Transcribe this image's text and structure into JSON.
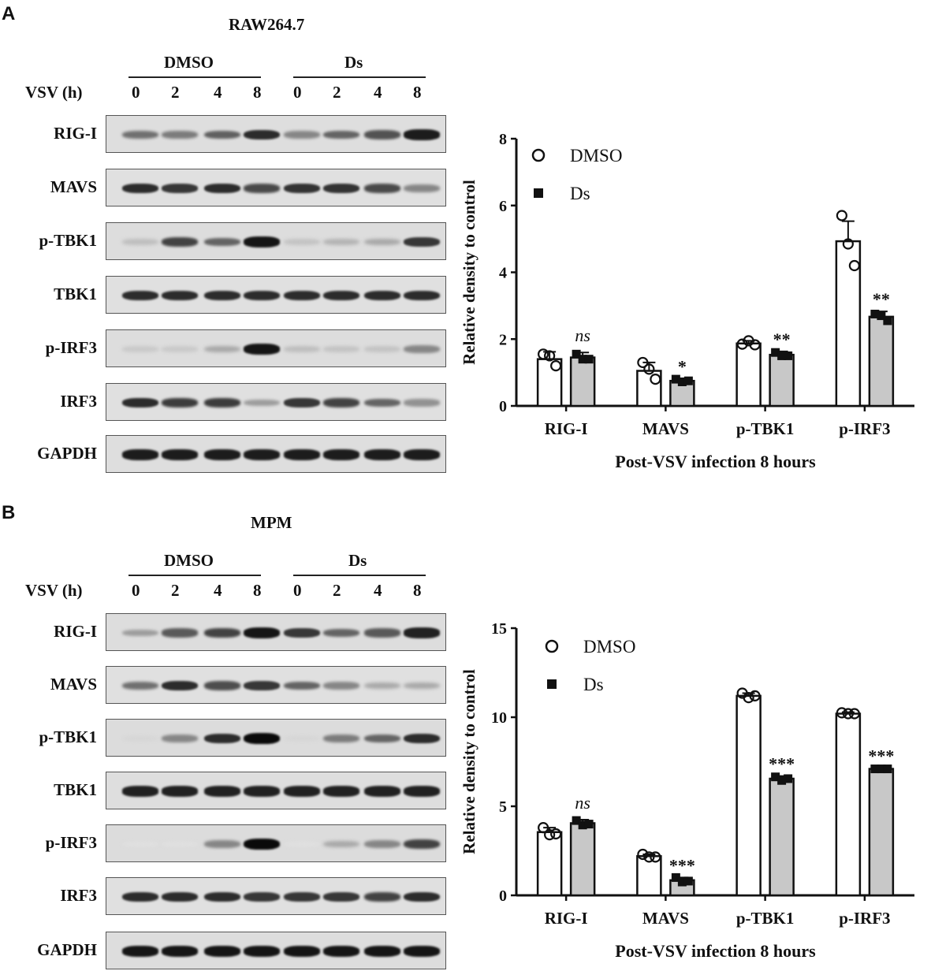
{
  "panels": [
    {
      "label": "A",
      "cell_line": "RAW264.7",
      "groups": [
        "DMSO",
        "Ds"
      ],
      "time_axis_label": "VSV (h)",
      "timepoints": [
        "0",
        "2",
        "4",
        "8",
        "0",
        "2",
        "4",
        "8"
      ],
      "blots": [
        {
          "name": "RIG-I",
          "intensity": [
            0.55,
            0.5,
            0.62,
            0.85,
            0.45,
            0.6,
            0.68,
            0.92
          ]
        },
        {
          "name": "MAVS",
          "intensity": [
            0.85,
            0.8,
            0.85,
            0.72,
            0.82,
            0.82,
            0.72,
            0.45
          ]
        },
        {
          "name": "p-TBK1",
          "intensity": [
            0.2,
            0.75,
            0.6,
            0.95,
            0.18,
            0.25,
            0.3,
            0.8
          ]
        },
        {
          "name": "TBK1",
          "intensity": [
            0.85,
            0.85,
            0.85,
            0.85,
            0.85,
            0.85,
            0.85,
            0.85
          ]
        },
        {
          "name": "p-IRF3",
          "intensity": [
            0.15,
            0.15,
            0.3,
            0.95,
            0.2,
            0.18,
            0.18,
            0.45
          ]
        },
        {
          "name": "IRF3",
          "intensity": [
            0.85,
            0.78,
            0.78,
            0.35,
            0.8,
            0.75,
            0.6,
            0.4
          ]
        },
        {
          "name": "GAPDH",
          "intensity": [
            0.92,
            0.92,
            0.92,
            0.92,
            0.92,
            0.92,
            0.92,
            0.92
          ]
        }
      ]
    },
    {
      "label": "B",
      "cell_line": "MPM",
      "groups": [
        "DMSO",
        "Ds"
      ],
      "time_axis_label": "VSV (h)",
      "timepoints": [
        "0",
        "2",
        "4",
        "8",
        "0",
        "2",
        "4",
        "8"
      ],
      "blots": [
        {
          "name": "RIG-I",
          "intensity": [
            0.35,
            0.65,
            0.75,
            0.95,
            0.8,
            0.6,
            0.65,
            0.9
          ]
        },
        {
          "name": "MAVS",
          "intensity": [
            0.55,
            0.85,
            0.7,
            0.8,
            0.6,
            0.45,
            0.3,
            0.3
          ]
        },
        {
          "name": "p-TBK1",
          "intensity": [
            0.1,
            0.45,
            0.85,
            1.0,
            0.1,
            0.5,
            0.6,
            0.85
          ]
        },
        {
          "name": "TBK1",
          "intensity": [
            0.9,
            0.9,
            0.9,
            0.9,
            0.9,
            0.9,
            0.9,
            0.9
          ]
        },
        {
          "name": "p-IRF3",
          "intensity": [
            0.05,
            0.05,
            0.45,
            1.0,
            0.05,
            0.3,
            0.45,
            0.75
          ]
        },
        {
          "name": "IRF3",
          "intensity": [
            0.85,
            0.85,
            0.85,
            0.8,
            0.8,
            0.8,
            0.75,
            0.85
          ]
        },
        {
          "name": "GAPDH",
          "intensity": [
            0.95,
            0.95,
            0.95,
            0.95,
            0.95,
            0.95,
            0.95,
            0.95
          ]
        }
      ]
    }
  ],
  "chart_data": [
    {
      "type": "bar",
      "panel": "A",
      "categories": [
        "RIG-I",
        "MAVS",
        "p-TBK1",
        "p-IRF3"
      ],
      "ylabel": "Relative density to  control",
      "xlabel": "Post-VSV infection 8 hours",
      "ylim": [
        0,
        8
      ],
      "yticks": [
        "0",
        "2",
        "4",
        "6",
        "8"
      ],
      "legend_placement": "top-left",
      "series": [
        {
          "name": "DMSO",
          "fill": "#ffffff",
          "marker": "circle",
          "values": [
            1.4,
            1.05,
            1.87,
            4.93
          ],
          "sd": [
            0.22,
            0.25,
            0.08,
            0.6
          ],
          "points": [
            [
              1.55,
              1.5,
              1.2
            ],
            [
              1.3,
              1.1,
              0.8
            ],
            [
              1.85,
              1.95,
              1.83
            ],
            [
              5.7,
              4.85,
              4.2
            ]
          ]
        },
        {
          "name": "Ds",
          "fill": "#c8c8c8",
          "marker": "square",
          "values": [
            1.45,
            0.75,
            1.53,
            2.67
          ],
          "sd": [
            0.15,
            0.06,
            0.1,
            0.16
          ],
          "points": [
            [
              1.55,
              1.4,
              1.4
            ],
            [
              0.8,
              0.72,
              0.75
            ],
            [
              1.6,
              1.5,
              1.5
            ],
            [
              2.75,
              2.7,
              2.55
            ]
          ]
        }
      ],
      "significance": [
        "ns",
        "*",
        "**",
        "**"
      ]
    },
    {
      "type": "bar",
      "panel": "B",
      "categories": [
        "RIG-I",
        "MAVS",
        "p-TBK1",
        "p-IRF3"
      ],
      "ylabel": "Relative density to control",
      "xlabel": "Post-VSV infection 8 hours",
      "ylim": [
        0,
        15
      ],
      "yticks": [
        "0",
        "5",
        "10",
        "15"
      ],
      "legend_placement": "top-left",
      "series": [
        {
          "name": "DMSO",
          "fill": "#ffffff",
          "marker": "circle",
          "values": [
            3.55,
            2.2,
            11.2,
            10.2
          ],
          "sd": [
            0.25,
            0.1,
            0.15,
            0.08
          ],
          "points": [
            [
              3.8,
              3.4,
              3.45
            ],
            [
              2.3,
              2.15,
              2.15
            ],
            [
              11.35,
              11.1,
              11.2
            ],
            [
              10.25,
              10.2,
              10.2
            ]
          ]
        },
        {
          "name": "Ds",
          "fill": "#c8c8c8",
          "marker": "square",
          "values": [
            4.05,
            0.85,
            6.55,
            7.1
          ],
          "sd": [
            0.2,
            0.15,
            0.15,
            0.05
          ],
          "points": [
            [
              4.2,
              3.95,
              4.0
            ],
            [
              1.0,
              0.75,
              0.8
            ],
            [
              6.65,
              6.45,
              6.55
            ],
            [
              7.1,
              7.1,
              7.1
            ]
          ]
        }
      ],
      "significance": [
        "ns",
        "***",
        "***",
        "***"
      ]
    }
  ]
}
